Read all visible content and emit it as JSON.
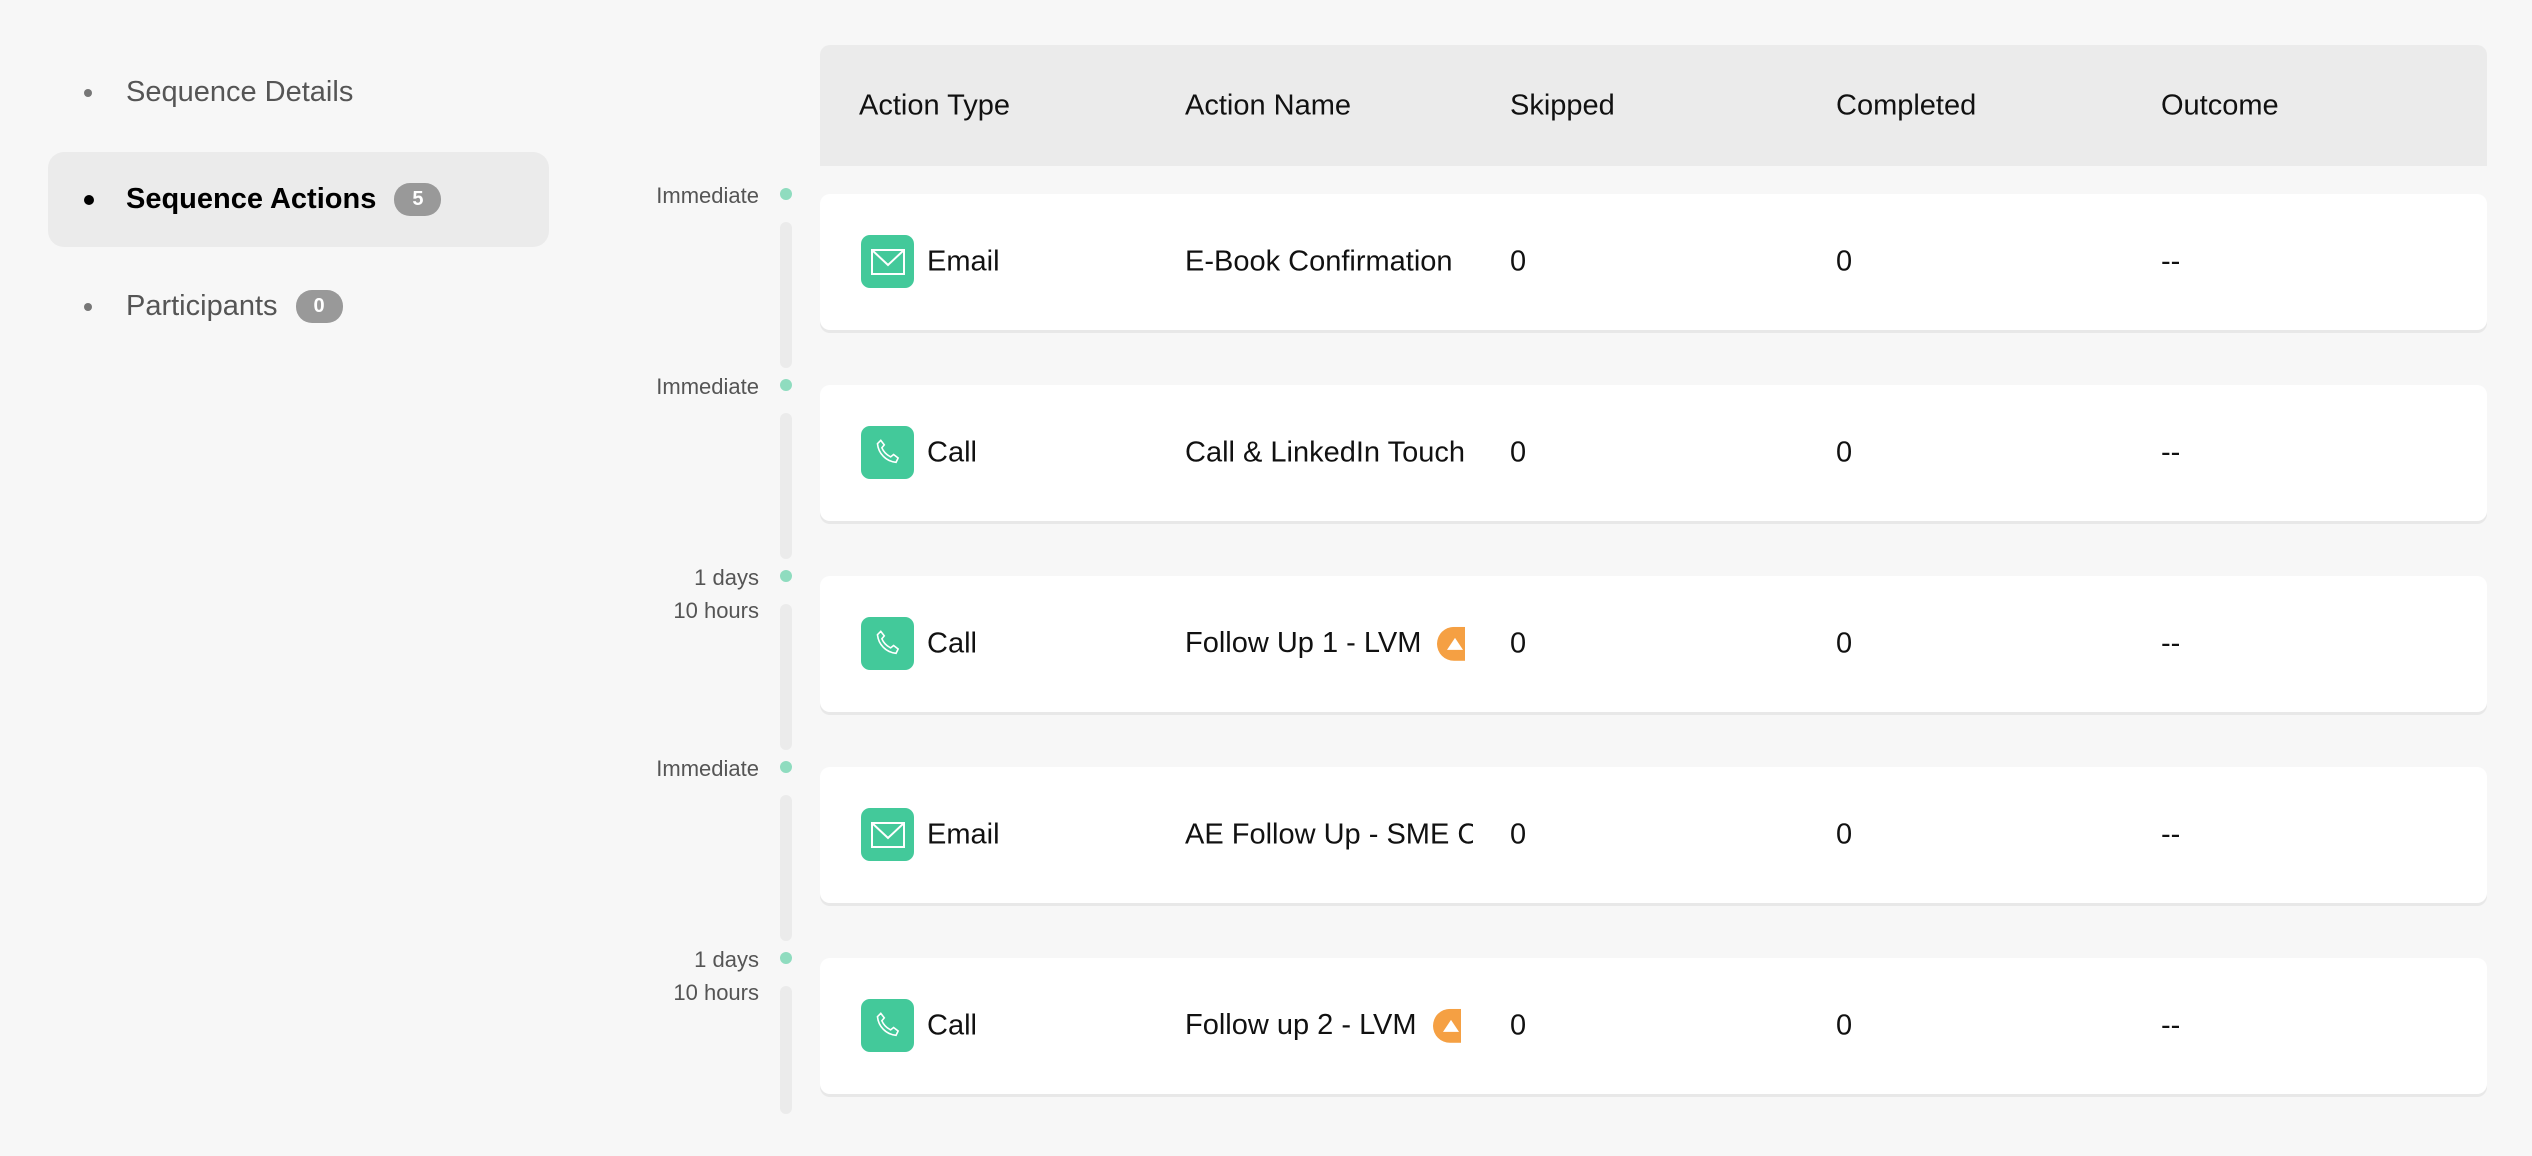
{
  "sidebar": {
    "items": [
      {
        "label": "Sequence Details"
      },
      {
        "label": "Sequence Actions",
        "badge": "5",
        "active": true
      },
      {
        "label": "Participants",
        "badge": "0"
      }
    ]
  },
  "table": {
    "headers": [
      "Action Type",
      "Action Name",
      "Skipped",
      "Completed",
      "Outcome"
    ],
    "rows": [
      {
        "delay": [
          "Immediate"
        ],
        "type": "Email",
        "icon": "envelope-icon",
        "name": "E-Book Confirmation",
        "warning": false,
        "skipped": "0",
        "completed": "0",
        "outcome": "--"
      },
      {
        "delay": [
          "Immediate"
        ],
        "type": "Call",
        "icon": "phone-icon",
        "name": "Call & LinkedIn Touch",
        "warning": false,
        "skipped": "0",
        "completed": "0",
        "outcome": "--"
      },
      {
        "delay": [
          "1 days",
          "10 hours"
        ],
        "type": "Call",
        "icon": "phone-icon",
        "name": "Follow Up 1 - LVM",
        "warning": true,
        "skipped": "0",
        "completed": "0",
        "outcome": "--"
      },
      {
        "delay": [
          "Immediate"
        ],
        "type": "Email",
        "icon": "envelope-icon",
        "name": "AE Follow Up - SME Co",
        "warning": false,
        "skipped": "0",
        "completed": "0",
        "outcome": "--"
      },
      {
        "delay": [
          "1 days",
          "10 hours"
        ],
        "type": "Call",
        "icon": "phone-icon",
        "name": "Follow up 2 - LVM",
        "warning": true,
        "skipped": "0",
        "completed": "0",
        "outcome": "--"
      }
    ]
  },
  "colors": {
    "accent": "#43c99a",
    "warning": "#f5a043",
    "badge": "#999999"
  }
}
